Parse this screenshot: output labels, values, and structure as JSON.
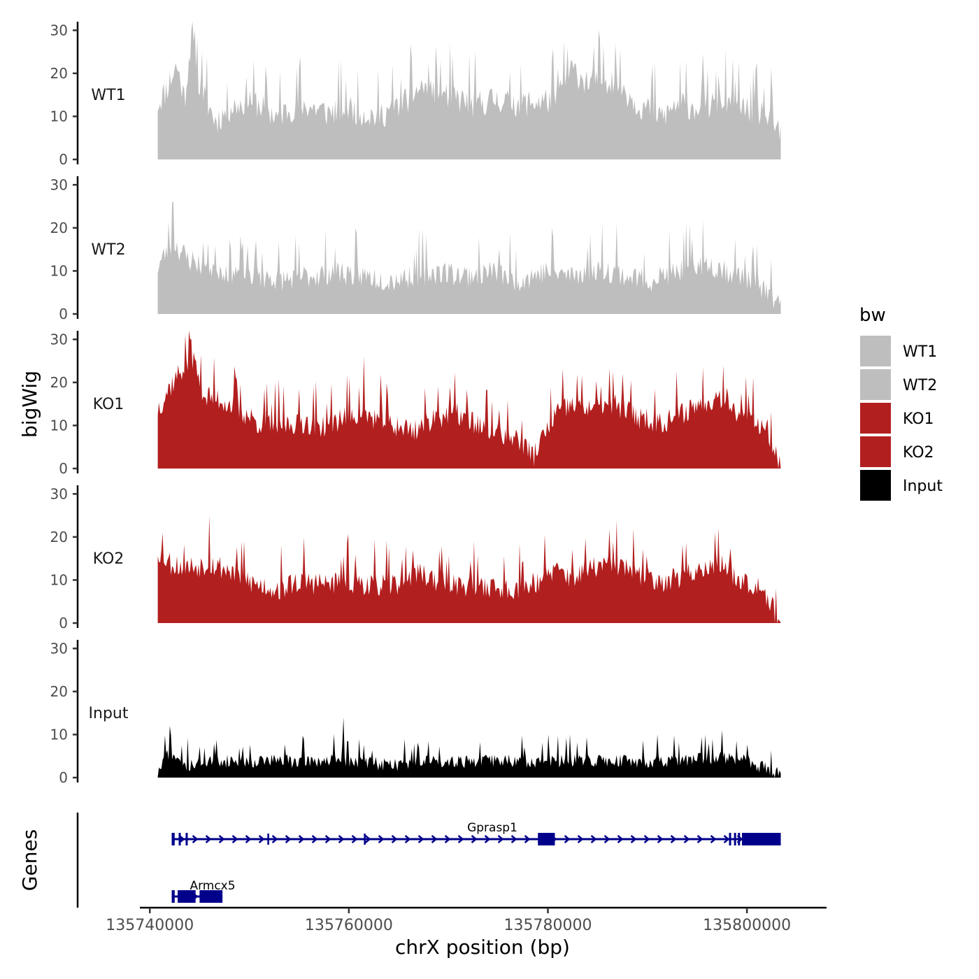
{
  "chart_data": {
    "type": "area",
    "chromosome": "chrX",
    "xlabel": "chrX position (bp)",
    "ylabel_tracks": "bigWig",
    "ylabel_genes": "Genes",
    "xlim": [
      135739000,
      135808000
    ],
    "x_ticks": [
      135740000,
      135760000,
      135780000,
      135800000
    ],
    "x_tick_labels": [
      "135740000",
      "135760000",
      "135780000",
      "135800000"
    ],
    "ylim": [
      0,
      32
    ],
    "y_ticks": [
      0,
      10,
      20,
      30
    ],
    "y_tick_labels": [
      "0",
      "10",
      "20",
      "30"
    ],
    "data_range": [
      135740800,
      135803400
    ],
    "legend": {
      "title": "bw",
      "entries": [
        {
          "label": "WT1",
          "color": "#bebebe"
        },
        {
          "label": "WT2",
          "color": "#bebebe"
        },
        {
          "label": "KO1",
          "color": "#b21f1f"
        },
        {
          "label": "KO2",
          "color": "#b21f1f"
        },
        {
          "label": "Input",
          "color": "#000000"
        }
      ]
    },
    "series": [
      {
        "name": "WT1",
        "color": "#bebebe",
        "anchors": [
          [
            135740800,
            13
          ],
          [
            135741600,
            16
          ],
          [
            135742700,
            22
          ],
          [
            135743500,
            14
          ],
          [
            135744200,
            29
          ],
          [
            135745000,
            17
          ],
          [
            135746600,
            9
          ],
          [
            135748100,
            12
          ],
          [
            135750200,
            14
          ],
          [
            135752700,
            10
          ],
          [
            135755000,
            13
          ],
          [
            135757800,
            11
          ],
          [
            135760000,
            12
          ],
          [
            135762800,
            10
          ],
          [
            135765300,
            13
          ],
          [
            135767400,
            17
          ],
          [
            135769800,
            15
          ],
          [
            135772400,
            13
          ],
          [
            135775000,
            14
          ],
          [
            135777600,
            13
          ],
          [
            135780700,
            14
          ],
          [
            135782300,
            21
          ],
          [
            135784100,
            18
          ],
          [
            135786600,
            19
          ],
          [
            135789000,
            13
          ],
          [
            135791600,
            10
          ],
          [
            135793000,
            13
          ],
          [
            135795700,
            12
          ],
          [
            135797700,
            14
          ],
          [
            135799600,
            12
          ],
          [
            135801500,
            11
          ],
          [
            135803400,
            6
          ]
        ],
        "peaks": [
          [
            135744200,
            30
          ],
          [
            135744800,
            28
          ],
          [
            135745300,
            25
          ],
          [
            135782000,
            26
          ],
          [
            135786800,
            27
          ]
        ],
        "noise": 7,
        "seed": 11
      },
      {
        "name": "WT2",
        "color": "#bebebe",
        "anchors": [
          [
            135740800,
            11
          ],
          [
            135742300,
            17
          ],
          [
            135743700,
            13
          ],
          [
            135745800,
            11
          ],
          [
            135748100,
            10
          ],
          [
            135750800,
            9
          ],
          [
            135753600,
            8
          ],
          [
            135756300,
            9
          ],
          [
            135758600,
            10
          ],
          [
            135761300,
            9
          ],
          [
            135764100,
            8
          ],
          [
            135766400,
            9
          ],
          [
            135769200,
            10
          ],
          [
            135771700,
            9
          ],
          [
            135774400,
            10
          ],
          [
            135777100,
            8
          ],
          [
            135779800,
            10
          ],
          [
            135782300,
            9
          ],
          [
            135785200,
            11
          ],
          [
            135787500,
            9
          ],
          [
            135790300,
            8
          ],
          [
            135793000,
            10
          ],
          [
            135795800,
            12
          ],
          [
            135798200,
            10
          ],
          [
            135800700,
            8
          ],
          [
            135803400,
            2
          ]
        ],
        "peaks": [
          [
            135742300,
            26
          ],
          [
            135786900,
            21
          ],
          [
            135780400,
            20
          ]
        ],
        "noise": 6,
        "seed": 23
      },
      {
        "name": "KO1",
        "color": "#b21f1f",
        "anchors": [
          [
            135740800,
            14
          ],
          [
            135742000,
            19
          ],
          [
            135743500,
            24
          ],
          [
            135744300,
            26
          ],
          [
            135745500,
            17
          ],
          [
            135747200,
            16
          ],
          [
            135748900,
            14
          ],
          [
            135750600,
            11
          ],
          [
            135752700,
            10
          ],
          [
            135755300,
            11
          ],
          [
            135757700,
            10
          ],
          [
            135760200,
            13
          ],
          [
            135762300,
            12
          ],
          [
            135764600,
            10
          ],
          [
            135766600,
            9
          ],
          [
            135768500,
            12
          ],
          [
            135770800,
            13
          ],
          [
            135773200,
            10
          ],
          [
            135775600,
            8
          ],
          [
            135777100,
            7
          ],
          [
            135778500,
            3
          ],
          [
            135779500,
            7
          ],
          [
            135780800,
            13
          ],
          [
            135782700,
            15
          ],
          [
            135784900,
            14
          ],
          [
            135786900,
            15
          ],
          [
            135789200,
            12
          ],
          [
            135791600,
            11
          ],
          [
            135793500,
            13
          ],
          [
            135795800,
            16
          ],
          [
            135797800,
            17
          ],
          [
            135799600,
            12
          ],
          [
            135802000,
            10
          ],
          [
            135803400,
            1
          ]
        ],
        "peaks": [
          [
            135744100,
            30
          ],
          [
            135761500,
            26
          ],
          [
            135797600,
            24
          ],
          [
            135769000,
            19
          ]
        ],
        "noise": 6,
        "seed": 37
      },
      {
        "name": "KO2",
        "color": "#b21f1f",
        "anchors": [
          [
            135740800,
            17
          ],
          [
            135742100,
            14
          ],
          [
            135743800,
            13
          ],
          [
            135746000,
            14
          ],
          [
            135748400,
            12
          ],
          [
            135750600,
            9
          ],
          [
            135753000,
            8
          ],
          [
            135755300,
            10
          ],
          [
            135757700,
            9
          ],
          [
            135760000,
            10
          ],
          [
            135762200,
            9
          ],
          [
            135764500,
            9
          ],
          [
            135766800,
            12
          ],
          [
            135769000,
            10
          ],
          [
            135771200,
            9
          ],
          [
            135773300,
            9
          ],
          [
            135775600,
            8
          ],
          [
            135778100,
            9
          ],
          [
            135780500,
            12
          ],
          [
            135782800,
            11
          ],
          [
            135784600,
            13
          ],
          [
            135786900,
            14
          ],
          [
            135789200,
            11
          ],
          [
            135791400,
            10
          ],
          [
            135793600,
            11
          ],
          [
            135795600,
            13
          ],
          [
            135797400,
            14
          ],
          [
            135799500,
            10
          ],
          [
            135801500,
            9
          ],
          [
            135803400,
            0
          ]
        ],
        "peaks": [
          [
            135746000,
            25
          ],
          [
            135741300,
            21
          ],
          [
            135796800,
            21
          ]
        ],
        "noise": 6,
        "seed": 53
      },
      {
        "name": "Input",
        "color": "#000000",
        "anchors": [
          [
            135740800,
            1
          ],
          [
            135741800,
            6
          ],
          [
            135743500,
            3
          ],
          [
            135746000,
            4
          ],
          [
            135749000,
            4
          ],
          [
            135752000,
            4
          ],
          [
            135755000,
            4
          ],
          [
            135758000,
            4
          ],
          [
            135761000,
            4
          ],
          [
            135764000,
            3
          ],
          [
            135767000,
            4
          ],
          [
            135770000,
            4
          ],
          [
            135773000,
            4
          ],
          [
            135776000,
            4
          ],
          [
            135779000,
            4
          ],
          [
            135782000,
            4
          ],
          [
            135785000,
            4
          ],
          [
            135788000,
            4
          ],
          [
            135791000,
            4
          ],
          [
            135794000,
            4
          ],
          [
            135797000,
            5
          ],
          [
            135800000,
            4
          ],
          [
            135803400,
            1
          ]
        ],
        "peaks": [
          [
            135742000,
            12
          ],
          [
            135759500,
            14
          ],
          [
            135780000,
            10
          ],
          [
            135796500,
            9
          ]
        ],
        "noise": 3.5,
        "seed": 71
      }
    ],
    "genes": [
      {
        "name": "Gprasp1",
        "strand": "+",
        "color": "#00008b",
        "start": 135742200,
        "end": 135803400,
        "exons": [
          [
            135742200,
            135742500
          ],
          [
            135742900,
            135743000
          ],
          [
            135743600,
            135743700
          ],
          [
            135779000,
            135780700
          ],
          [
            135798200,
            135798300
          ],
          [
            135798700,
            135798800
          ],
          [
            135799100,
            135799200
          ],
          [
            135799500,
            135803400
          ]
        ],
        "introns_marks": [
          135751900,
          135761600
        ]
      },
      {
        "name": "Armcx5",
        "strand": "+",
        "color": "#00008b",
        "start": 135742200,
        "end": 135747300,
        "exons": [
          [
            135742200,
            135742500
          ],
          [
            135742800,
            135744600
          ],
          [
            135745000,
            135747300
          ]
        ],
        "introns_marks": []
      }
    ]
  }
}
